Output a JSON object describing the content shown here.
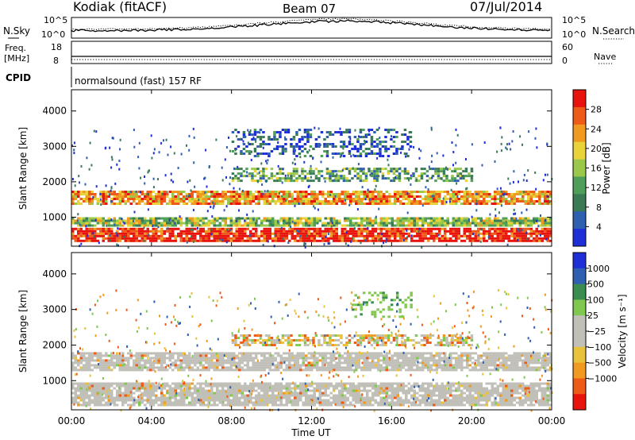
{
  "header": {
    "station": "Kodiak (fitACF)",
    "beam": "Beam 07",
    "date": "07/Jul/2014"
  },
  "noise_panel": {
    "left_label": "N.Sky",
    "right_label": "N.Search",
    "left_ticks": [
      "10^5",
      "10^0"
    ],
    "right_ticks": [
      "10^5",
      "10^0"
    ]
  },
  "freq_panel": {
    "left_label_1": "Freq.",
    "left_label_2": "[MHz]",
    "right_label": "Nave",
    "left_ticks": [
      "18",
      "8"
    ],
    "right_ticks": [
      "60",
      "0"
    ]
  },
  "cpid_panel": {
    "label": "CPID",
    "value": "normalsound (fast) 157 RF"
  },
  "colors": {
    "power": [
      "#1e2fd8",
      "#2f5fb0",
      "#3a7a55",
      "#4f9f5a",
      "#9ac84a",
      "#e8d33a",
      "#f09a22",
      "#ee5a18",
      "#e8130c"
    ],
    "velocity": [
      "#e8130c",
      "#ee5a18",
      "#f09a22",
      "#e8c23a",
      "#c0bfb8",
      "#c0bfb8",
      "#80c850",
      "#3a8c50",
      "#2f5fb0",
      "#1e2fd8"
    ]
  },
  "chart_data": [
    {
      "type": "heatmap",
      "name": "power",
      "ylabel": "Slant Range [km]",
      "ylim": [
        180,
        4600
      ],
      "yticks": [
        1000,
        2000,
        3000,
        4000
      ],
      "colorbar": {
        "label": "Power [dB]",
        "ticks": [
          "4",
          "8",
          "12",
          "16",
          "20",
          "24",
          "28"
        ],
        "range": [
          0,
          32
        ]
      },
      "bands": [
        {
          "range_km": [
            1350,
            1750
          ],
          "level": "mid-high",
          "start_h": 0,
          "end_h": 24
        },
        {
          "range_km": [
            350,
            700
          ],
          "level": "high",
          "start_h": 0,
          "end_h": 24
        },
        {
          "range_km": [
            750,
            1000
          ],
          "level": "mid",
          "start_h": 0,
          "end_h": 24
        },
        {
          "range_km": [
            2000,
            2400
          ],
          "level": "low-mid",
          "start_h": 8,
          "end_h": 20
        },
        {
          "range_km": [
            2700,
            3500
          ],
          "level": "low",
          "start_h": 8,
          "end_h": 17
        }
      ]
    },
    {
      "type": "heatmap",
      "name": "velocity",
      "ylabel": "Slant Range [km]",
      "ylim": [
        180,
        4600
      ],
      "yticks": [
        1000,
        2000,
        3000,
        4000
      ],
      "colorbar": {
        "label": "Velocity [m s⁻¹]",
        "ticks": [
          "1000",
          "500",
          "100",
          "25",
          "−25",
          "−100",
          "−500",
          "−1000"
        ],
        "range": [
          -1200,
          1200
        ]
      },
      "bands": [
        {
          "range_km": [
            1300,
            1800
          ],
          "level": "ground",
          "start_h": 0,
          "end_h": 24
        },
        {
          "range_km": [
            300,
            950
          ],
          "level": "ground",
          "start_h": 0,
          "end_h": 24
        },
        {
          "range_km": [
            2000,
            2300
          ],
          "level": "mixed",
          "start_h": 8,
          "end_h": 20
        },
        {
          "range_km": [
            2800,
            3500
          ],
          "level": "positive",
          "start_h": 14,
          "end_h": 17
        }
      ]
    }
  ],
  "xaxis": {
    "label": "Time UT",
    "ticks": [
      "00:00",
      "04:00",
      "08:00",
      "12:00",
      "16:00",
      "20:00",
      "00:00"
    ],
    "range_h": [
      0,
      24
    ]
  }
}
